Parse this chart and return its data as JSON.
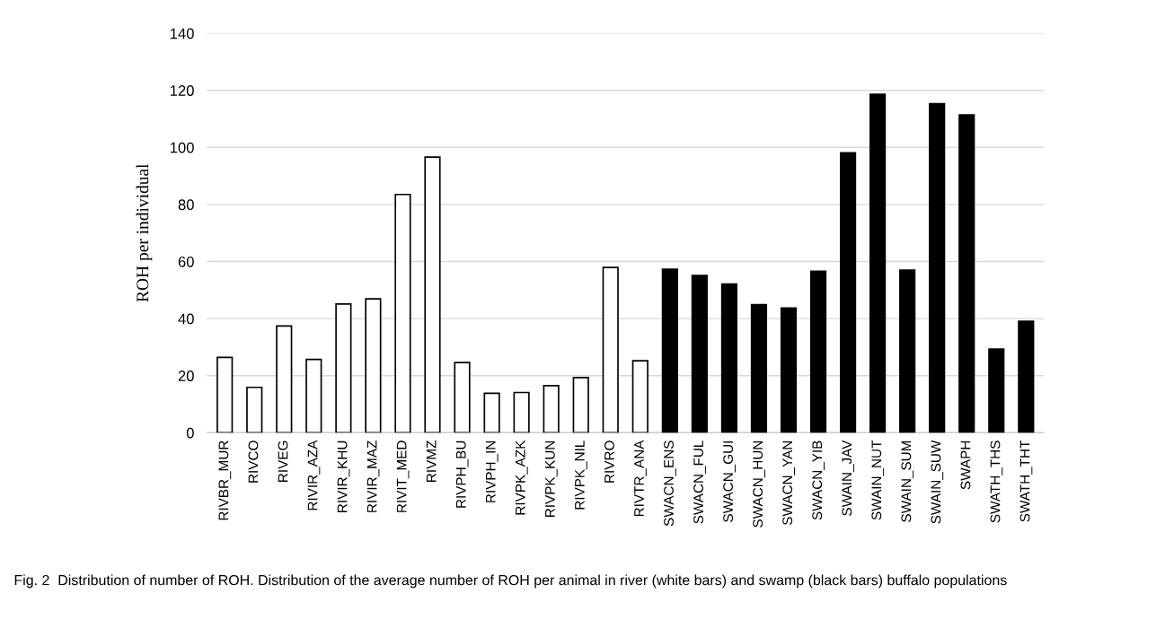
{
  "chart_data": {
    "type": "bar",
    "ylabel": "ROH per individual",
    "categories": [
      "RIVBR_MUR",
      "RIVCO",
      "RIVEG",
      "RIVIR_AZA",
      "RIVIR_KHU",
      "RIVIR_MAZ",
      "RIVIT_MED",
      "RIVMZ",
      "RIVPH_BU",
      "RIVPH_IN",
      "RIVPK_AZK",
      "RIVPK_KUN",
      "RIVPK_NIL",
      "RIVRO",
      "RIVTR_ANA",
      "SWACN_ENS",
      "SWACN_FUL",
      "SWACN_GUI",
      "SWACN_HUN",
      "SWACN_YAN",
      "SWACN_YIB",
      "SWAIN_JAV",
      "SWAIN_NUT",
      "SWAIN_SUM",
      "SWAIN_SUW",
      "SWAPH",
      "SWATH_THS",
      "SWATH_THT"
    ],
    "values": [
      26.4,
      15.9,
      37.4,
      25.7,
      45.1,
      46.9,
      83.5,
      96.6,
      24.6,
      13.8,
      14.1,
      16.5,
      19.3,
      57.9,
      25.2,
      57.3,
      55.1,
      52.1,
      44.9,
      43.7,
      56.6,
      98.1,
      118.6,
      57.0,
      115.3,
      111.4,
      29.3,
      39.1
    ],
    "colors": [
      "#ffffff",
      "#ffffff",
      "#ffffff",
      "#ffffff",
      "#ffffff",
      "#ffffff",
      "#ffffff",
      "#ffffff",
      "#ffffff",
      "#ffffff",
      "#ffffff",
      "#ffffff",
      "#ffffff",
      "#ffffff",
      "#ffffff",
      "#000000",
      "#000000",
      "#000000",
      "#000000",
      "#000000",
      "#000000",
      "#000000",
      "#000000",
      "#000000",
      "#000000",
      "#000000",
      "#000000",
      "#000000"
    ],
    "ylim": [
      0,
      140
    ],
    "yticks": [
      0,
      20,
      40,
      60,
      80,
      100,
      120,
      140
    ],
    "grid": "y",
    "annotations": [
      "Fig. 2  Distribution of number of ROH. Distribution of the average number of ROH per animal in river (white bars) and swamp (black bars) buffalo populations"
    ]
  }
}
